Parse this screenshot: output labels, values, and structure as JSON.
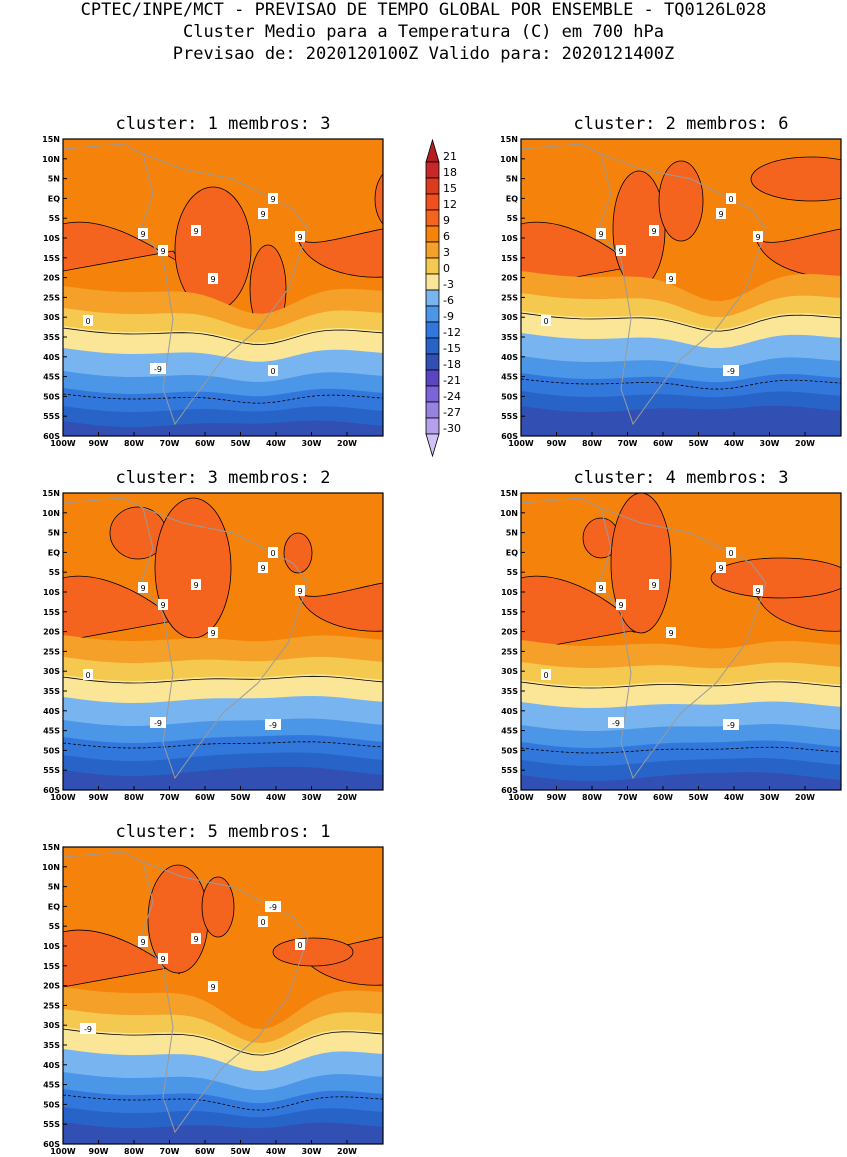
{
  "header": {
    "line1": "CPTEC/INPE/MCT - PREVISAO DE TEMPO GLOBAL POR ENSEMBLE - TQ0126L028",
    "line2": "Cluster Medio para a Temperatura (C) em 700 hPa",
    "line3": "Previsao de: 2020120100Z   Valido para: 2020121400Z"
  },
  "colorbar": {
    "levels": [
      "21",
      "18",
      "15",
      "12",
      "9",
      "6",
      "3",
      "0",
      "-3",
      "-6",
      "-9",
      "-12",
      "-15",
      "-18",
      "-21",
      "-24",
      "-27",
      "-30"
    ],
    "colors": [
      "#b41e1e",
      "#c82828",
      "#dc3c1e",
      "#f0501e",
      "#f5641e",
      "#f5820a",
      "#f5a028",
      "#f5c850",
      "#fae696",
      "#78b4f0",
      "#4b96e6",
      "#3278dc",
      "#2864c8",
      "#3250b4",
      "#5a46c3",
      "#7a64d7",
      "#9682e1",
      "#b4a0eb",
      "#d2c3f5"
    ]
  },
  "chart_data": [
    {
      "type": "heatmap",
      "title": "cluster: 1   membros: 3",
      "cluster": "1",
      "membros": "3",
      "x_ticks": [
        "100W",
        "90W",
        "80W",
        "70W",
        "60W",
        "50W",
        "40W",
        "30W",
        "20W"
      ],
      "y_ticks": [
        "15N",
        "10N",
        "5N",
        "EQ",
        "5S",
        "10S",
        "15S",
        "20S",
        "25S",
        "30S",
        "35S",
        "40S",
        "45S",
        "50S",
        "55S",
        "60S"
      ],
      "xlim": [
        -100,
        -10
      ],
      "ylim": [
        -60,
        15
      ],
      "unit": "C",
      "contour_labels": [
        "9",
        "9",
        "9",
        "9",
        "9",
        "9",
        "9",
        "0",
        "0",
        "-9"
      ]
    },
    {
      "type": "heatmap",
      "title": "cluster: 2   membros: 6",
      "cluster": "2",
      "membros": "6",
      "x_ticks": [
        "100W",
        "90W",
        "80W",
        "70W",
        "60W",
        "50W",
        "40W",
        "30W",
        "20W"
      ],
      "y_ticks": [
        "15N",
        "10N",
        "5N",
        "EQ",
        "5S",
        "10S",
        "15S",
        "20S",
        "25S",
        "30S",
        "35S",
        "40S",
        "45S",
        "50S",
        "55S",
        "60S"
      ],
      "xlim": [
        -100,
        -10
      ],
      "ylim": [
        -60,
        15
      ],
      "unit": "C",
      "contour_labels": [
        "9",
        "9",
        "9",
        "9",
        "9",
        "9",
        "0",
        "0",
        "-9"
      ]
    },
    {
      "type": "heatmap",
      "title": "cluster: 3   membros: 2",
      "cluster": "3",
      "membros": "2",
      "x_ticks": [
        "100W",
        "90W",
        "80W",
        "70W",
        "60W",
        "50W",
        "40W",
        "30W",
        "20W"
      ],
      "y_ticks": [
        "15N",
        "10N",
        "5N",
        "EQ",
        "5S",
        "10S",
        "15S",
        "20S",
        "25S",
        "30S",
        "35S",
        "40S",
        "45S",
        "50S",
        "55S",
        "60S"
      ],
      "xlim": [
        -100,
        -10
      ],
      "ylim": [
        -60,
        15
      ],
      "unit": "C",
      "contour_labels": [
        "9",
        "9",
        "9",
        "9",
        "9",
        "9",
        "0",
        "0",
        "-9",
        "-9"
      ]
    },
    {
      "type": "heatmap",
      "title": "cluster: 4   membros: 3",
      "cluster": "4",
      "membros": "3",
      "x_ticks": [
        "100W",
        "90W",
        "80W",
        "70W",
        "60W",
        "50W",
        "40W",
        "30W",
        "20W"
      ],
      "y_ticks": [
        "15N",
        "10N",
        "5N",
        "EQ",
        "5S",
        "10S",
        "15S",
        "20S",
        "25S",
        "30S",
        "35S",
        "40S",
        "45S",
        "50S",
        "55S",
        "60S"
      ],
      "xlim": [
        -100,
        -10
      ],
      "ylim": [
        -60,
        15
      ],
      "unit": "C",
      "contour_labels": [
        "9",
        "9",
        "9",
        "9",
        "9",
        "9",
        "0",
        "0",
        "-9",
        "-9"
      ]
    },
    {
      "type": "heatmap",
      "title": "cluster: 5   membros: 1",
      "cluster": "5",
      "membros": "1",
      "x_ticks": [
        "100W",
        "90W",
        "80W",
        "70W",
        "60W",
        "50W",
        "40W",
        "30W",
        "20W"
      ],
      "y_ticks": [
        "15N",
        "10N",
        "5N",
        "EQ",
        "5S",
        "10S",
        "15S",
        "20S",
        "25S",
        "30S",
        "35S",
        "40S",
        "45S",
        "50S",
        "55S",
        "60S"
      ],
      "xlim": [
        -100,
        -10
      ],
      "ylim": [
        -60,
        15
      ],
      "unit": "C",
      "contour_labels": [
        "9",
        "9",
        "9",
        "9",
        "0",
        "0",
        "-9",
        "-9"
      ]
    }
  ]
}
